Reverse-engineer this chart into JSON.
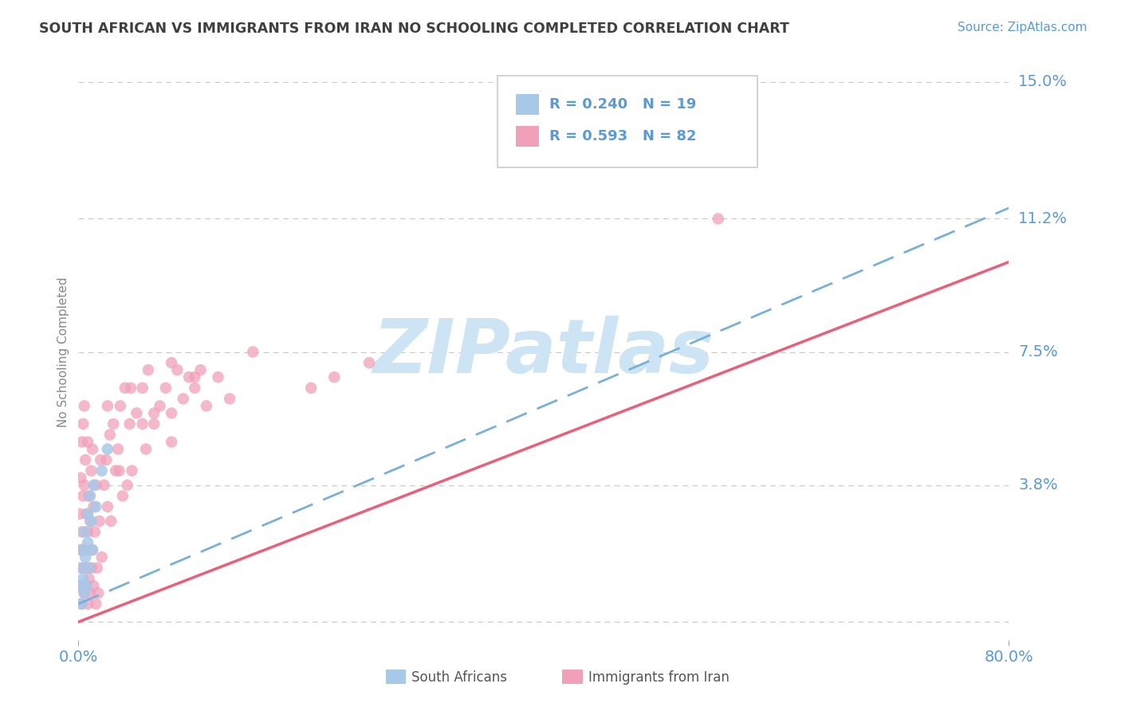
{
  "title": "SOUTH AFRICAN VS IMMIGRANTS FROM IRAN NO SCHOOLING COMPLETED CORRELATION CHART",
  "source": "Source: ZipAtlas.com",
  "ylabel": "No Schooling Completed",
  "xlim": [
    0.0,
    0.8
  ],
  "ylim": [
    -0.005,
    0.155
  ],
  "ytick_values": [
    0.0,
    0.038,
    0.075,
    0.112,
    0.15
  ],
  "ytick_labels": [
    "",
    "3.8%",
    "7.5%",
    "11.2%",
    "15.0%"
  ],
  "grid_color": "#c8c8c8",
  "background_color": "#ffffff",
  "south_african_color": "#a8c8e8",
  "iran_color": "#f0a0b8",
  "south_african_line_color": "#7ab0d8",
  "iran_line_color": "#e8607a",
  "axis_color": "#5b9bd5",
  "title_color": "#404040",
  "legend_R1": "R = 0.240",
  "legend_N1": "N = 19",
  "legend_R2": "R = 0.593",
  "legend_N2": "N = 82",
  "legend_label1": "South Africans",
  "legend_label2": "Immigrants from Iran",
  "iran_line_x": [
    0.0,
    0.8
  ],
  "iran_line_y": [
    0.0,
    0.1
  ],
  "sa_line_x": [
    0.0,
    0.8
  ],
  "sa_line_y": [
    0.005,
    0.115
  ],
  "watermark_text": "ZIPatlas",
  "watermark_color": "#cce4f4"
}
